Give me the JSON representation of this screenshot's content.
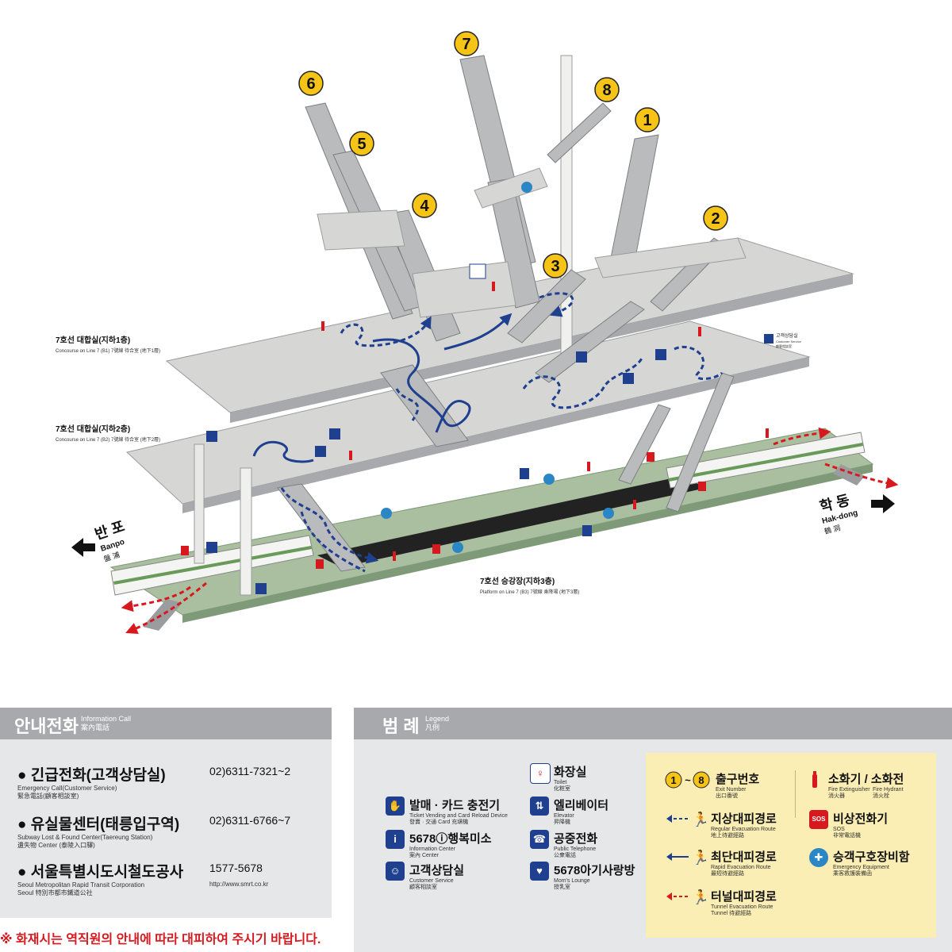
{
  "map": {
    "exit_numbers": [
      "1",
      "2",
      "3",
      "4",
      "5",
      "6",
      "7",
      "8"
    ],
    "levels": {
      "b1": {
        "ko": "7호선 대합실(지하1층)",
        "en": "Concourse on Line 7 (B1)  7號線 待合室 (地下1層)"
      },
      "b2": {
        "ko": "7호선 대합실(지하2층)",
        "en": "Concourse on Line 7 (B2)  7號線 待合室 (地下2層)"
      },
      "b3": {
        "ko": "7호선 승강장(지하3층)",
        "en": "Platform on Line 7 (B3)  7號線 乘降場 (地下3層)"
      }
    },
    "directions": {
      "left": {
        "ko": "반 포",
        "en": "Banpo",
        "hanja": "盤 浦"
      },
      "right": {
        "ko": "학 동",
        "en": "Hak-dong",
        "hanja": "鶴 洞"
      }
    },
    "customer_service_sign": {
      "ko": "고객상담실",
      "en": "Customer Service",
      "hanja": "顧客相談室"
    }
  },
  "info_call": {
    "title": "안내전화",
    "title_en": "Information Call",
    "title_hanja": "案內電話",
    "items": [
      {
        "name": "긴급전화(고객상담실)",
        "sub_en": "Emergency Call(Customer Service)",
        "sub_hanja": "緊急電話(顧客相談室)",
        "number": "02)6311-7321~2",
        "url": ""
      },
      {
        "name": "유실물센터(태릉입구역)",
        "sub_en": "Subway Lost & Found Center(Taereung Station)",
        "sub_hanja": "遺失物 Center (泰陵入口驛)",
        "number": "02)6311-6766~7",
        "url": ""
      },
      {
        "name": "서울특별시도시철도공사",
        "sub_en": "Seoul Metropolitan Rapid Transit Corporation",
        "sub_hanja": "Seoul 特別市都市鐵道公社",
        "number": "1577-5678",
        "url": "http://www.smrt.co.kr"
      }
    ]
  },
  "legend": {
    "title": "범 례",
    "title_en": "Legend",
    "title_hanja": "凡例",
    "items": {
      "ticket": {
        "ko": "발매 · 카드 충전기",
        "en": "Ticket Vending and Card Reload Device",
        "hanja": "發賣 · 交通 Card 充塡機"
      },
      "info": {
        "ko": "5678ⓘ행복미소",
        "en": "Information Center",
        "hanja": "案內 Center"
      },
      "customer": {
        "ko": "고객상담실",
        "en": "Customer Service",
        "hanja": "顧客相談室"
      },
      "toilet": {
        "ko": "화장실",
        "en": "Toilet",
        "hanja": "化粧室"
      },
      "elevator": {
        "ko": "엘리베이터",
        "en": "Elevator",
        "hanja": "昇降機"
      },
      "phone": {
        "ko": "공중전화",
        "en": "Public Telephone",
        "hanja": "公衆電話"
      },
      "mom": {
        "ko": "5678아기사랑방",
        "en": "Mom's Lounge",
        "hanja": "授乳室"
      },
      "exit": {
        "range_from": "1",
        "range_sep": "~",
        "range_to": "8",
        "ko": "출구번호",
        "en": "Exit Number",
        "hanja": "出口番號"
      },
      "ground_route": {
        "ko": "지상대피경로",
        "en": "Regular Evacuation Route",
        "hanja": "地上待避經路"
      },
      "rapid_route": {
        "ko": "최단대피경로",
        "en": "Rapid Evacuation Route",
        "hanja": "最短待避經路"
      },
      "tunnel_route": {
        "ko": "터널대피경로",
        "en": "Tunnel Evacuation Route",
        "hanja": "Tunnel 待避經路"
      },
      "fire": {
        "ko": "소화기 / 소화전",
        "en1": "Fire Extinguisher",
        "hanja1": "消火器",
        "en2": "Fire Hydrant",
        "hanja2": "消火栓"
      },
      "sos": {
        "ko": "비상전화기",
        "en": "SOS",
        "hanja": "非常電話機",
        "badge": "SOS"
      },
      "rescue": {
        "ko": "승객구호장비함",
        "en": "Emergency Equipment",
        "hanja": "乘客救護裝備函"
      }
    }
  },
  "warning": "※ 화재시는 역직원의 안내에 따라 대피하여 주시기 바랍니다.",
  "colors": {
    "exit_yellow": "#f6c417",
    "regular_route": "#1f3f8f",
    "tunnel_route": "#d7191f",
    "platform_green": "#a9bfa0",
    "floor_grey": "#d6d7d4",
    "header_grey": "#a7a9ac",
    "panel_grey": "#e6e7e9",
    "legend_bg": "#fbeeb4"
  }
}
